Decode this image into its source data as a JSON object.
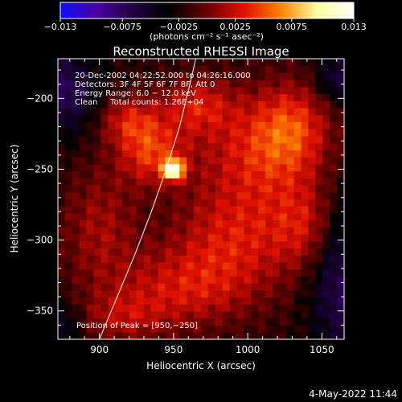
{
  "chart_data": {
    "type": "heatmap",
    "title": "Reconstructed RHESSI Image",
    "xlabel": "Heliocentric X (arcsec)",
    "ylabel": "Heliocentric Y (arcsec)",
    "xlim": [
      872,
      1065
    ],
    "ylim": [
      -370,
      -172
    ],
    "x_ticks": [
      900,
      950,
      1000,
      1050
    ],
    "y_ticks": [
      -350,
      -300,
      -250,
      -200
    ],
    "colorbar": {
      "range": [
        -0.013,
        0.013
      ],
      "tick_values": [
        -0.013,
        -0.0075,
        -0.0025,
        0.0025,
        0.0075,
        0.013
      ],
      "tick_labels": [
        "−0.013",
        "−0.0075",
        "−0.0025",
        "0.0025",
        "0.0075",
        "0.013"
      ],
      "unit": "(photons cm⁻² s⁻¹ asec⁻²)",
      "colors": [
        "#1010ff",
        "#4a00a0",
        "#200040",
        "#000000",
        "#6a0000",
        "#e01000",
        "#ff8000",
        "#ffffa0",
        "#ffffff"
      ]
    },
    "annotations": [
      "20-Dec-2002 04:22:52.000 to 04:26:16.000",
      "Detectors: 3F 4F 5F 6F 7F 8F, Att 0",
      "Energy Range: 6.0 − 12.0 keV",
      "Clean     Total counts: 1.26E+04"
    ],
    "peak_label": "Position of Peak = [950,−250]",
    "peak": {
      "x": 950,
      "y": -250,
      "value": 0.013
    },
    "limb_curve": [
      [
        900,
        -370
      ],
      [
        912,
        -340
      ],
      [
        924,
        -310
      ],
      [
        935,
        -280
      ],
      [
        945,
        -250
      ],
      [
        954,
        -220
      ],
      [
        961,
        -190
      ],
      [
        965,
        -172
      ]
    ],
    "emission_blobs": [
      {
        "x": 950,
        "y": -250,
        "sx": 5,
        "sy": 5,
        "amp": 0.0125
      },
      {
        "x": 935,
        "y": -238,
        "sx": 16,
        "sy": 16,
        "amp": 0.006
      },
      {
        "x": 920,
        "y": -215,
        "sx": 14,
        "sy": 12,
        "amp": 0.0045
      },
      {
        "x": 965,
        "y": -205,
        "sx": 18,
        "sy": 14,
        "amp": 0.0045
      },
      {
        "x": 1005,
        "y": -240,
        "sx": 30,
        "sy": 30,
        "amp": 0.005
      },
      {
        "x": 1030,
        "y": -220,
        "sx": 18,
        "sy": 22,
        "amp": 0.005
      },
      {
        "x": 990,
        "y": -300,
        "sx": 30,
        "sy": 25,
        "amp": 0.0045
      },
      {
        "x": 1040,
        "y": -290,
        "sx": 16,
        "sy": 22,
        "amp": 0.004
      },
      {
        "x": 955,
        "y": -335,
        "sx": 35,
        "sy": 20,
        "amp": 0.0045
      },
      {
        "x": 900,
        "y": -290,
        "sx": 18,
        "sy": 30,
        "amp": 0.0035
      },
      {
        "x": 915,
        "y": -355,
        "sx": 20,
        "sy": 12,
        "amp": 0.003
      },
      {
        "x": 878,
        "y": -195,
        "sx": 14,
        "sy": 20,
        "amp": -0.005
      },
      {
        "x": 1062,
        "y": -325,
        "sx": 14,
        "sy": 40,
        "amp": -0.005
      },
      {
        "x": 1060,
        "y": -185,
        "sx": 10,
        "sy": 12,
        "amp": -0.004
      },
      {
        "x": 875,
        "y": -360,
        "sx": 10,
        "sy": 12,
        "amp": -0.003
      }
    ]
  },
  "footer": {
    "timestamp": "4-May-2022 11:44"
  }
}
